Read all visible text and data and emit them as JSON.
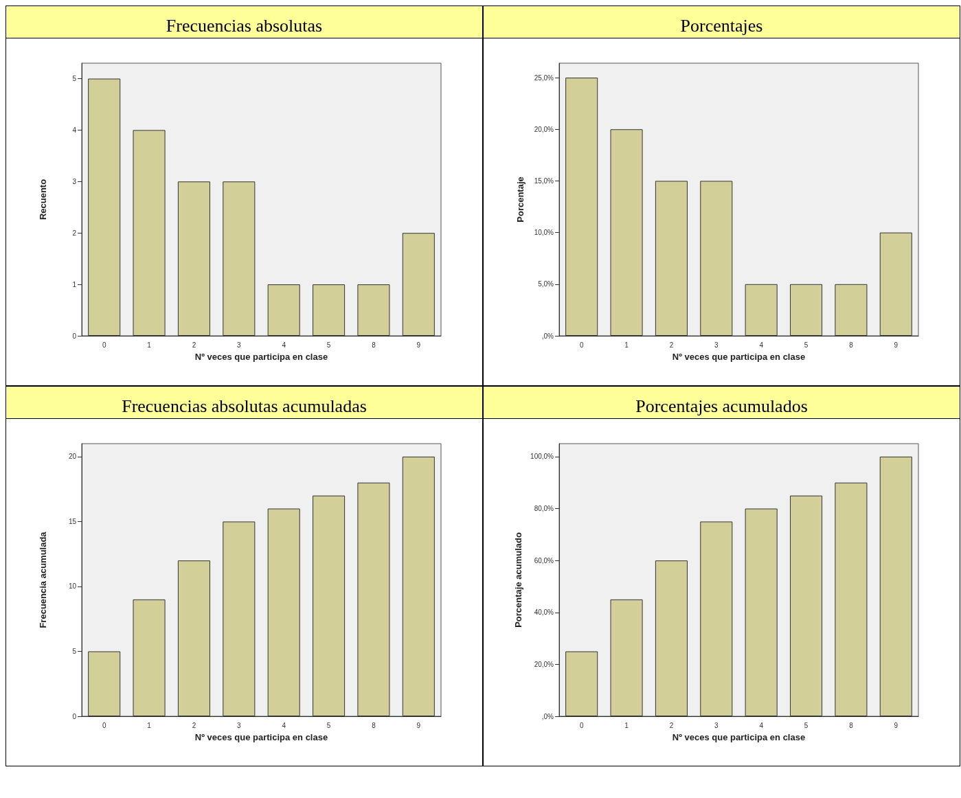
{
  "chart_data": [
    {
      "type": "bar",
      "title": "Frecuencias absolutas",
      "xlabel": "Nº veces que participa en clase",
      "ylabel": "Recuento",
      "categories": [
        "0",
        "1",
        "2",
        "3",
        "4",
        "5",
        "8",
        "9"
      ],
      "values": [
        5,
        4,
        3,
        3,
        1,
        1,
        1,
        2
      ],
      "color": "#d3cf98",
      "ylim": [
        0,
        5.3
      ],
      "yticks": [
        0,
        1,
        2,
        3,
        4,
        5
      ],
      "grid": false
    },
    {
      "type": "bar",
      "title": "Porcentajes",
      "xlabel": "Nº veces que participa en clase",
      "ylabel": "Porcentaje",
      "categories": [
        "0",
        "1",
        "2",
        "3",
        "4",
        "5",
        "8",
        "9"
      ],
      "values": [
        25,
        20,
        15,
        15,
        5,
        5,
        5,
        10
      ],
      "color": "#d3cf98",
      "ylim": [
        0,
        26.4
      ],
      "yticks": [
        {
          "value": 0,
          "label": ",0%"
        },
        {
          "value": 5,
          "label": "5,0%"
        },
        {
          "value": 10,
          "label": "10,0%"
        },
        {
          "value": 15,
          "label": "15,0%"
        },
        {
          "value": 20,
          "label": "20,0%"
        },
        {
          "value": 25,
          "label": "25,0%"
        }
      ],
      "grid": false
    },
    {
      "type": "bar",
      "title": "Frecuencias absolutas acumuladas",
      "xlabel": "Nº veces que participa en clase",
      "ylabel": "Frecuencia acumulada",
      "categories": [
        "0",
        "1",
        "2",
        "3",
        "4",
        "5",
        "8",
        "9"
      ],
      "values": [
        5,
        9,
        12,
        15,
        16,
        17,
        18,
        20
      ],
      "color": "#d3cf98",
      "ylim": [
        0,
        21
      ],
      "yticks": [
        0,
        5,
        10,
        15,
        20
      ],
      "grid": false
    },
    {
      "type": "bar",
      "title": "Porcentajes acumulados",
      "xlabel": "Nº veces que participa en clase",
      "ylabel": "Porcentaje acumulado",
      "categories": [
        "0",
        "1",
        "2",
        "3",
        "4",
        "5",
        "8",
        "9"
      ],
      "values": [
        25,
        45,
        60,
        75,
        80,
        85,
        90,
        100
      ],
      "color": "#d3cf98",
      "ylim": [
        0,
        105
      ],
      "yticks": [
        {
          "value": 0,
          "label": ",0%"
        },
        {
          "value": 20,
          "label": "20,0%"
        },
        {
          "value": 40,
          "label": "40,0%"
        },
        {
          "value": 60,
          "label": "60,0%"
        },
        {
          "value": 80,
          "label": "80,0%"
        },
        {
          "value": 100,
          "label": "100,0%"
        }
      ],
      "grid": false
    }
  ]
}
